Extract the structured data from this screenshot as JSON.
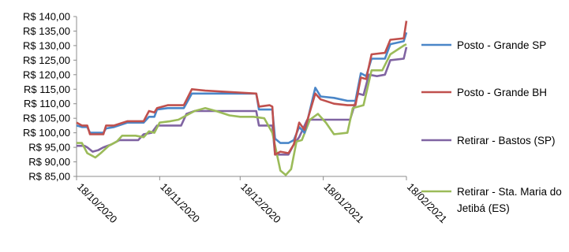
{
  "chart_data": {
    "type": "line",
    "title": "",
    "xlabel": "",
    "ylabel": "",
    "ylim": [
      85,
      140
    ],
    "y_step": 5,
    "y_tick_prefix": "R$ ",
    "y_tick_decimals": 2,
    "x_ticks": [
      "18/10/2020",
      "18/11/2020",
      "18/12/2020",
      "18/01/2021",
      "18/02/2021"
    ],
    "x_range": [
      "2020-10-18",
      "2021-02-18"
    ],
    "grid": false,
    "legend_position": "right",
    "series": [
      {
        "name": "Posto - Grande SP",
        "color": "#4a86c8",
        "points": [
          [
            "2020-10-18",
            102.5
          ],
          [
            "2020-10-20",
            102.0
          ],
          [
            "2020-10-22",
            102.0
          ],
          [
            "2020-10-23",
            100.0
          ],
          [
            "2020-10-28",
            100.0
          ],
          [
            "2020-10-29",
            101.5
          ],
          [
            "2020-11-01",
            102.0
          ],
          [
            "2020-11-06",
            103.5
          ],
          [
            "2020-11-12",
            103.5
          ],
          [
            "2020-11-14",
            105.5
          ],
          [
            "2020-11-16",
            105.5
          ],
          [
            "2020-11-17",
            108.0
          ],
          [
            "2020-11-21",
            108.5
          ],
          [
            "2020-11-27",
            108.5
          ],
          [
            "2020-11-30",
            113.5
          ],
          [
            "2020-12-05",
            113.5
          ],
          [
            "2020-12-15",
            113.5
          ],
          [
            "2020-12-24",
            113.5
          ],
          [
            "2020-12-25",
            108.0
          ],
          [
            "2020-12-29",
            108.0
          ],
          [
            "2020-12-30",
            108.0
          ],
          [
            "2020-12-31",
            98.0
          ],
          [
            "2021-01-02",
            96.5
          ],
          [
            "2021-01-05",
            96.5
          ],
          [
            "2021-01-07",
            97.5
          ],
          [
            "2021-01-09",
            102.0
          ],
          [
            "2021-01-11",
            100.0
          ],
          [
            "2021-01-15",
            115.5
          ],
          [
            "2021-01-17",
            112.5
          ],
          [
            "2021-01-22",
            112.0
          ],
          [
            "2021-01-27",
            111.0
          ],
          [
            "2021-01-30",
            111.0
          ],
          [
            "2021-02-01",
            120.5
          ],
          [
            "2021-02-03",
            119.5
          ],
          [
            "2021-02-05",
            125.5
          ],
          [
            "2021-02-10",
            125.5
          ],
          [
            "2021-02-12",
            130.5
          ],
          [
            "2021-02-17",
            131.5
          ],
          [
            "2021-02-18",
            134.5
          ]
        ]
      },
      {
        "name": "Posto - Grande BH",
        "color": "#c0504d",
        "points": [
          [
            "2020-10-18",
            103.5
          ],
          [
            "2020-10-20",
            102.5
          ],
          [
            "2020-10-22",
            102.5
          ],
          [
            "2020-10-23",
            99.5
          ],
          [
            "2020-10-28",
            99.5
          ],
          [
            "2020-10-29",
            102.5
          ],
          [
            "2020-11-01",
            102.5
          ],
          [
            "2020-11-06",
            104.0
          ],
          [
            "2020-11-12",
            104.0
          ],
          [
            "2020-11-14",
            107.5
          ],
          [
            "2020-11-16",
            107.0
          ],
          [
            "2020-11-17",
            108.5
          ],
          [
            "2020-11-21",
            109.5
          ],
          [
            "2020-11-27",
            109.5
          ],
          [
            "2020-11-30",
            115.0
          ],
          [
            "2020-12-05",
            114.5
          ],
          [
            "2020-12-15",
            114.0
          ],
          [
            "2020-12-24",
            113.5
          ],
          [
            "2020-12-25",
            109.0
          ],
          [
            "2020-12-29",
            109.5
          ],
          [
            "2020-12-30",
            109.0
          ],
          [
            "2020-12-31",
            92.5
          ],
          [
            "2021-01-02",
            93.5
          ],
          [
            "2021-01-05",
            93.0
          ],
          [
            "2021-01-07",
            96.0
          ],
          [
            "2021-01-09",
            103.5
          ],
          [
            "2021-01-11",
            101.0
          ],
          [
            "2021-01-15",
            113.5
          ],
          [
            "2021-01-17",
            111.5
          ],
          [
            "2021-01-22",
            110.0
          ],
          [
            "2021-01-27",
            109.5
          ],
          [
            "2021-01-30",
            109.5
          ],
          [
            "2021-02-01",
            119.0
          ],
          [
            "2021-02-03",
            118.5
          ],
          [
            "2021-02-05",
            127.0
          ],
          [
            "2021-02-10",
            127.5
          ],
          [
            "2021-02-12",
            132.0
          ],
          [
            "2021-02-17",
            132.5
          ],
          [
            "2021-02-18",
            138.5
          ]
        ]
      },
      {
        "name": "Retirar - Bastos (SP)",
        "color": "#8064a2",
        "points": [
          [
            "2020-10-18",
            95.5
          ],
          [
            "2020-10-21",
            95.5
          ],
          [
            "2020-10-22",
            95.0
          ],
          [
            "2020-10-24",
            93.5
          ],
          [
            "2020-10-26",
            94.0
          ],
          [
            "2020-10-28",
            95.0
          ],
          [
            "2020-10-31",
            96.0
          ],
          [
            "2020-11-03",
            97.5
          ],
          [
            "2020-11-10",
            97.5
          ],
          [
            "2020-11-12",
            99.5
          ],
          [
            "2020-11-15",
            100.0
          ],
          [
            "2020-11-17",
            102.5
          ],
          [
            "2020-11-26",
            102.5
          ],
          [
            "2020-11-28",
            106.5
          ],
          [
            "2020-12-01",
            107.5
          ],
          [
            "2020-12-06",
            107.5
          ],
          [
            "2020-12-16",
            107.5
          ],
          [
            "2020-12-24",
            107.5
          ],
          [
            "2020-12-25",
            102.5
          ],
          [
            "2020-12-30",
            102.5
          ],
          [
            "2020-12-31",
            92.5
          ],
          [
            "2021-01-05",
            92.5
          ],
          [
            "2021-01-07",
            96.0
          ],
          [
            "2021-01-09",
            98.5
          ],
          [
            "2021-01-12",
            104.5
          ],
          [
            "2021-01-20",
            104.5
          ],
          [
            "2021-01-28",
            104.5
          ],
          [
            "2021-01-31",
            113.5
          ],
          [
            "2021-02-02",
            113.0
          ],
          [
            "2021-02-04",
            120.0
          ],
          [
            "2021-02-07",
            119.5
          ],
          [
            "2021-02-10",
            120.0
          ],
          [
            "2021-02-12",
            125.0
          ],
          [
            "2021-02-17",
            125.5
          ],
          [
            "2021-02-18",
            129.5
          ]
        ]
      },
      {
        "name": "Retirar - Sta. Maria do Jetibá (ES)",
        "color": "#9bbb59",
        "points": [
          [
            "2020-10-18",
            96.5
          ],
          [
            "2020-10-20",
            96.5
          ],
          [
            "2020-10-22",
            93.0
          ],
          [
            "2020-10-25",
            91.5
          ],
          [
            "2020-10-27",
            93.0
          ],
          [
            "2020-10-30",
            95.5
          ],
          [
            "2020-11-02",
            97.0
          ],
          [
            "2020-11-04",
            99.0
          ],
          [
            "2020-11-09",
            99.0
          ],
          [
            "2020-11-12",
            98.5
          ],
          [
            "2020-11-14",
            100.5
          ],
          [
            "2020-11-16",
            100.0
          ],
          [
            "2020-11-18",
            103.5
          ],
          [
            "2020-11-22",
            104.0
          ],
          [
            "2020-11-25",
            104.5
          ],
          [
            "2020-11-28",
            106.0
          ],
          [
            "2020-12-01",
            107.5
          ],
          [
            "2020-12-05",
            108.5
          ],
          [
            "2020-12-09",
            107.5
          ],
          [
            "2020-12-14",
            106.0
          ],
          [
            "2020-12-18",
            105.5
          ],
          [
            "2020-12-23",
            105.5
          ],
          [
            "2020-12-27",
            105.0
          ],
          [
            "2020-12-30",
            100.0
          ],
          [
            "2021-01-02",
            87.0
          ],
          [
            "2021-01-04",
            85.5
          ],
          [
            "2021-01-06",
            87.5
          ],
          [
            "2021-01-08",
            97.0
          ],
          [
            "2021-01-10",
            97.5
          ],
          [
            "2021-01-13",
            104.5
          ],
          [
            "2021-01-16",
            106.5
          ],
          [
            "2021-01-19",
            103.5
          ],
          [
            "2021-01-22",
            99.5
          ],
          [
            "2021-01-27",
            100.0
          ],
          [
            "2021-01-29",
            108.5
          ],
          [
            "2021-02-02",
            109.5
          ],
          [
            "2021-02-05",
            121.5
          ],
          [
            "2021-02-09",
            121.5
          ],
          [
            "2021-02-12",
            127.0
          ],
          [
            "2021-02-17",
            130.0
          ],
          [
            "2021-02-18",
            130.5
          ]
        ]
      }
    ]
  }
}
